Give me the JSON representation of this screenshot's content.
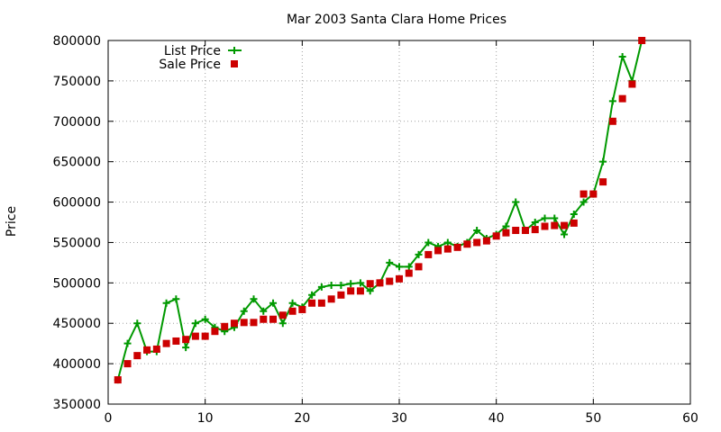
{
  "chart_data": {
    "type": "line",
    "title": "Mar 2003 Santa Clara Home Prices",
    "xlabel": "",
    "ylabel": "Price",
    "xlim": [
      0,
      60
    ],
    "ylim": [
      350000,
      800000
    ],
    "xticks": [
      0,
      10,
      20,
      30,
      40,
      50,
      60
    ],
    "yticks": [
      350000,
      400000,
      450000,
      500000,
      550000,
      600000,
      650000,
      700000,
      750000,
      800000
    ],
    "grid": true,
    "legend_position": "top-left",
    "x": [
      1,
      2,
      3,
      4,
      5,
      6,
      7,
      8,
      9,
      10,
      11,
      12,
      13,
      14,
      15,
      16,
      17,
      18,
      19,
      20,
      21,
      22,
      23,
      24,
      25,
      26,
      27,
      28,
      29,
      30,
      31,
      32,
      33,
      34,
      35,
      36,
      37,
      38,
      39,
      40,
      41,
      42,
      43,
      44,
      45,
      46,
      47,
      48,
      49,
      50,
      51,
      52,
      53,
      54,
      55
    ],
    "series": [
      {
        "name": "List Price",
        "style": "linespoints",
        "marker": "plus",
        "color": "#009900",
        "values": [
          380000,
          425000,
          450000,
          415000,
          415000,
          475000,
          480000,
          420000,
          450000,
          455000,
          445000,
          440000,
          445000,
          465000,
          480000,
          465000,
          475000,
          450000,
          475000,
          470000,
          485000,
          495000,
          497000,
          497000,
          499000,
          500000,
          490000,
          500000,
          525000,
          520000,
          520000,
          535000,
          550000,
          545000,
          550000,
          545000,
          550000,
          565000,
          555000,
          560000,
          570000,
          600000,
          565000,
          575000,
          580000,
          580000,
          560000,
          585000,
          600000,
          610000,
          650000,
          725000,
          780000,
          750000,
          800000
        ]
      },
      {
        "name": "Sale Price",
        "style": "points",
        "marker": "square",
        "color": "#cc0000",
        "values": [
          380000,
          400000,
          410000,
          417000,
          418000,
          425000,
          428000,
          430000,
          434000,
          434000,
          440000,
          446000,
          450000,
          451000,
          451000,
          455000,
          455000,
          460000,
          465000,
          467000,
          475000,
          475000,
          480000,
          485000,
          490000,
          490000,
          499000,
          500000,
          502000,
          505000,
          512000,
          520000,
          535000,
          540000,
          542000,
          544000,
          548000,
          550000,
          552000,
          558000,
          562000,
          565000,
          565000,
          566000,
          570000,
          571000,
          571000,
          574000,
          610000,
          610000,
          625000,
          700000,
          728000,
          746000,
          800000
        ]
      }
    ]
  },
  "colors": {
    "list": "#009900",
    "sale": "#cc0000",
    "grid": "#a0a0a0"
  }
}
